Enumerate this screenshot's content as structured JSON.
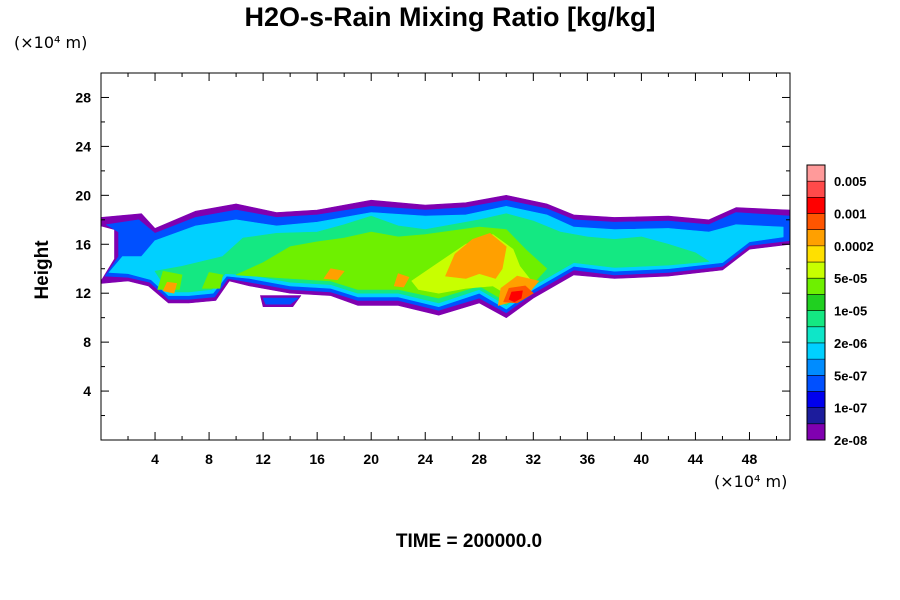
{
  "chart_data": {
    "type": "heatmap",
    "title": "H2O-s-Rain Mixing Ratio [kg/kg]",
    "xlabel": "",
    "ylabel": "Height",
    "x_unit": "(×10⁴ m)",
    "y_unit": "(×10⁴ m)",
    "footer": "TIME = 200000.0",
    "xlim": [
      0,
      51
    ],
    "ylim": [
      0,
      30
    ],
    "x_ticks": [
      4,
      8,
      12,
      16,
      20,
      24,
      28,
      32,
      36,
      40,
      44,
      48
    ],
    "y_ticks": [
      4,
      8,
      12,
      16,
      20,
      24,
      28
    ],
    "colorbar": {
      "labels": [
        "0.005",
        "0.001",
        "0.0002",
        "5e-05",
        "1e-05",
        "2e-06",
        "5e-07",
        "1e-07",
        "2e-08"
      ],
      "colors_top_to_bottom": [
        "#ff9a9a",
        "#ff4a4a",
        "#ff0000",
        "#ff5500",
        "#ffa000",
        "#ffe000",
        "#c8ff00",
        "#6ef000",
        "#20d020",
        "#14e882",
        "#0ee6c8",
        "#00d0ff",
        "#008cff",
        "#0050ff",
        "#0000ee",
        "#1c1c9c",
        "#8000b0"
      ]
    },
    "regions": [
      {
        "level": "2e-08",
        "color": "#8000b0",
        "polygon": [
          [
            0,
            13
          ],
          [
            1,
            14.8
          ],
          [
            1,
            17.2
          ],
          [
            0,
            17.5
          ],
          [
            0,
            18.2
          ],
          [
            3,
            18.5
          ],
          [
            4,
            17.3
          ],
          [
            7,
            18.7
          ],
          [
            10,
            19.3
          ],
          [
            13,
            18.6
          ],
          [
            16,
            18.8
          ],
          [
            20,
            19.6
          ],
          [
            24,
            19.2
          ],
          [
            27,
            19.4
          ],
          [
            30,
            20
          ],
          [
            33,
            19.3
          ],
          [
            35,
            18.4
          ],
          [
            38,
            18.2
          ],
          [
            42,
            18.3
          ],
          [
            45,
            18
          ],
          [
            47,
            19
          ],
          [
            51,
            18.8
          ],
          [
            51,
            16
          ],
          [
            48,
            15.6
          ],
          [
            46,
            13.9
          ],
          [
            42,
            13.4
          ],
          [
            38,
            13.2
          ],
          [
            35,
            13.5
          ],
          [
            32,
            11.6
          ],
          [
            30,
            10
          ],
          [
            28,
            11.2
          ],
          [
            25,
            10.2
          ],
          [
            22,
            11
          ],
          [
            19,
            11
          ],
          [
            17,
            11.8
          ],
          [
            14,
            12
          ],
          [
            11,
            12.6
          ],
          [
            9.5,
            13
          ],
          [
            8.5,
            11.4
          ],
          [
            6.5,
            11.2
          ],
          [
            5,
            11.2
          ],
          [
            3.5,
            12.6
          ],
          [
            2,
            13
          ],
          [
            0,
            12.8
          ]
        ]
      },
      {
        "level": "2e-08",
        "color": "#8000b0",
        "polygon": [
          [
            11.8,
            11.8
          ],
          [
            14.8,
            11.8
          ],
          [
            14.2,
            10.9
          ],
          [
            12,
            10.9
          ]
        ]
      },
      {
        "level": "1e-07",
        "color": "#0050ff",
        "polygon": [
          [
            0.3,
            13.4
          ],
          [
            1.3,
            15
          ],
          [
            1.3,
            17
          ],
          [
            0.4,
            17.6
          ],
          [
            2.8,
            18
          ],
          [
            4,
            16.9
          ],
          [
            7,
            18.2
          ],
          [
            10,
            18.8
          ],
          [
            13,
            18.2
          ],
          [
            16,
            18.4
          ],
          [
            20,
            19.1
          ],
          [
            24,
            18.8
          ],
          [
            27,
            19
          ],
          [
            30,
            19.6
          ],
          [
            33,
            18.9
          ],
          [
            35,
            18
          ],
          [
            38,
            17.8
          ],
          [
            42,
            17.9
          ],
          [
            45,
            17.6
          ],
          [
            47,
            18.6
          ],
          [
            51,
            18.3
          ],
          [
            51,
            16.3
          ],
          [
            48,
            15.9
          ],
          [
            46,
            14.2
          ],
          [
            42,
            13.7
          ],
          [
            38,
            13.5
          ],
          [
            35,
            13.9
          ],
          [
            32,
            12
          ],
          [
            30,
            10.4
          ],
          [
            28,
            11.6
          ],
          [
            25,
            10.6
          ],
          [
            22,
            11.4
          ],
          [
            19,
            11.4
          ],
          [
            17,
            12.1
          ],
          [
            14,
            12.3
          ],
          [
            11,
            12.9
          ],
          [
            9.4,
            13.2
          ],
          [
            8.4,
            11.7
          ],
          [
            6.5,
            11.5
          ],
          [
            5,
            11.5
          ],
          [
            3.6,
            12.9
          ],
          [
            2,
            13.3
          ]
        ]
      },
      {
        "level": "1e-07",
        "color": "#0050ff",
        "polygon": [
          [
            12,
            11.6
          ],
          [
            14.6,
            11.6
          ],
          [
            14,
            11.1
          ],
          [
            12.2,
            11.1
          ]
        ]
      },
      {
        "level": "5e-07",
        "color": "#00d0ff",
        "polygon": [
          [
            0.6,
            13.7
          ],
          [
            1.6,
            15
          ],
          [
            3,
            15
          ],
          [
            4,
            16.3
          ],
          [
            7,
            17.5
          ],
          [
            10,
            18
          ],
          [
            13,
            17.5
          ],
          [
            16,
            17.8
          ],
          [
            20,
            18.6
          ],
          [
            24,
            18.3
          ],
          [
            27,
            18.4
          ],
          [
            30,
            19.1
          ],
          [
            33,
            18.4
          ],
          [
            35,
            17.4
          ],
          [
            38,
            17.2
          ],
          [
            42,
            17.3
          ],
          [
            45,
            17
          ],
          [
            47,
            17.6
          ],
          [
            50.5,
            17.4
          ],
          [
            50.5,
            16.6
          ],
          [
            48,
            16.2
          ],
          [
            46,
            14.5
          ],
          [
            42,
            14
          ],
          [
            38,
            13.8
          ],
          [
            35,
            14.2
          ],
          [
            32,
            12.3
          ],
          [
            30,
            10.7
          ],
          [
            28,
            12
          ],
          [
            25,
            10.9
          ],
          [
            22,
            11.7
          ],
          [
            19,
            11.7
          ],
          [
            17,
            12.4
          ],
          [
            14,
            12.6
          ],
          [
            11,
            13.2
          ],
          [
            9.3,
            13.4
          ],
          [
            8.3,
            12
          ],
          [
            6.5,
            11.8
          ],
          [
            5,
            11.8
          ],
          [
            3.7,
            13.1
          ],
          [
            2,
            13.6
          ]
        ]
      },
      {
        "level": "2e-06",
        "color": "#14e882",
        "polygon": [
          [
            4,
            13.8
          ],
          [
            6,
            14.2
          ],
          [
            9,
            15
          ],
          [
            10.5,
            16.5
          ],
          [
            13,
            16.9
          ],
          [
            16,
            17
          ],
          [
            18,
            17.6
          ],
          [
            20,
            18.3
          ],
          [
            22,
            17.5
          ],
          [
            24,
            17.2
          ],
          [
            26,
            17.6
          ],
          [
            28,
            18
          ],
          [
            30,
            18.5
          ],
          [
            32,
            17.9
          ],
          [
            34,
            17
          ],
          [
            36,
            16.6
          ],
          [
            38,
            16.4
          ],
          [
            40,
            16.6
          ],
          [
            42,
            16
          ],
          [
            44,
            15.3
          ],
          [
            45,
            14.6
          ],
          [
            42,
            14.3
          ],
          [
            38,
            14.1
          ],
          [
            35,
            14.5
          ],
          [
            32,
            12.6
          ],
          [
            30,
            11
          ],
          [
            28,
            12.3
          ],
          [
            25,
            11.2
          ],
          [
            22,
            12
          ],
          [
            19,
            12
          ],
          [
            17,
            12.7
          ],
          [
            14,
            12.9
          ],
          [
            11,
            13.5
          ],
          [
            9.2,
            13.6
          ],
          [
            8.2,
            12.3
          ],
          [
            6.5,
            12.1
          ],
          [
            5,
            12.1
          ]
        ]
      },
      {
        "level": "1e-05",
        "color": "#6ef000",
        "polygon": [
          [
            10,
            13.5
          ],
          [
            12,
            14.5
          ],
          [
            14,
            15.8
          ],
          [
            16,
            16.2
          ],
          [
            18,
            16.5
          ],
          [
            20,
            17
          ],
          [
            22,
            16.6
          ],
          [
            24,
            16.8
          ],
          [
            26,
            17.1
          ],
          [
            28,
            17.4
          ],
          [
            30,
            17.2
          ],
          [
            31.5,
            15.5
          ],
          [
            33,
            14
          ],
          [
            32,
            12.8
          ],
          [
            30,
            11.3
          ],
          [
            28,
            12.6
          ],
          [
            25,
            11.6
          ],
          [
            22,
            12.3
          ],
          [
            19,
            12.3
          ],
          [
            17,
            13
          ],
          [
            14,
            13.2
          ]
        ]
      },
      {
        "level": "1e-05",
        "color": "#6ef000",
        "polygon": [
          [
            4.2,
            12.3
          ],
          [
            4.6,
            13.8
          ],
          [
            6,
            13.5
          ],
          [
            5.8,
            12.3
          ]
        ]
      },
      {
        "level": "1e-05",
        "color": "#6ef000",
        "polygon": [
          [
            7.5,
            12.4
          ],
          [
            8,
            13.7
          ],
          [
            9,
            13.5
          ],
          [
            8.8,
            12.4
          ]
        ]
      },
      {
        "level": "5e-05",
        "color": "#c8ff00",
        "polygon": [
          [
            23,
            13
          ],
          [
            25,
            14.5
          ],
          [
            27,
            16
          ],
          [
            29,
            16.8
          ],
          [
            30.5,
            15.6
          ],
          [
            31,
            14.2
          ],
          [
            32,
            12.8
          ],
          [
            30.5,
            11.6
          ],
          [
            29,
            12.6
          ],
          [
            27,
            12.4
          ],
          [
            25,
            12
          ],
          [
            23.5,
            12.3
          ]
        ]
      },
      {
        "level": "0.0002",
        "color": "#ffa000",
        "polygon": [
          [
            25.5,
            13.4
          ],
          [
            26.2,
            15.2
          ],
          [
            27.5,
            16.4
          ],
          [
            28.8,
            16.9
          ],
          [
            30,
            15.8
          ],
          [
            29.7,
            14
          ],
          [
            29.2,
            13.2
          ],
          [
            28,
            13.6
          ],
          [
            27,
            13.2
          ]
        ]
      },
      {
        "level": "0.0002",
        "color": "#ffa000",
        "polygon": [
          [
            4.6,
            12.2
          ],
          [
            4.9,
            12.9
          ],
          [
            5.6,
            12.8
          ],
          [
            5.4,
            12
          ]
        ]
      },
      {
        "level": "0.0002",
        "color": "#ffa000",
        "polygon": [
          [
            16.5,
            13.2
          ],
          [
            17,
            14
          ],
          [
            18,
            13.8
          ],
          [
            17.5,
            13.1
          ]
        ]
      },
      {
        "level": "0.0002",
        "color": "#ffa000",
        "polygon": [
          [
            21.7,
            12.6
          ],
          [
            22,
            13.6
          ],
          [
            22.8,
            13.3
          ],
          [
            22.4,
            12.5
          ]
        ]
      },
      {
        "level": "0.0002",
        "color": "#ffa000",
        "polygon": [
          [
            29.4,
            11
          ],
          [
            29.6,
            12.4
          ],
          [
            30.8,
            13.4
          ],
          [
            32.4,
            13
          ],
          [
            31.8,
            12.2
          ],
          [
            30.4,
            11.3
          ]
        ]
      },
      {
        "level": "0.001",
        "color": "#ff5500",
        "polygon": [
          [
            29.8,
            11.3
          ],
          [
            30.2,
            12.4
          ],
          [
            31.4,
            12.6
          ],
          [
            32,
            12
          ],
          [
            30.8,
            11.2
          ]
        ]
      },
      {
        "level": "0.005",
        "color": "#ff0000",
        "polygon": [
          [
            30.2,
            11.5
          ],
          [
            30.4,
            12.1
          ],
          [
            31.2,
            12.2
          ],
          [
            31.1,
            11.6
          ],
          [
            30.6,
            11.3
          ]
        ]
      }
    ]
  }
}
